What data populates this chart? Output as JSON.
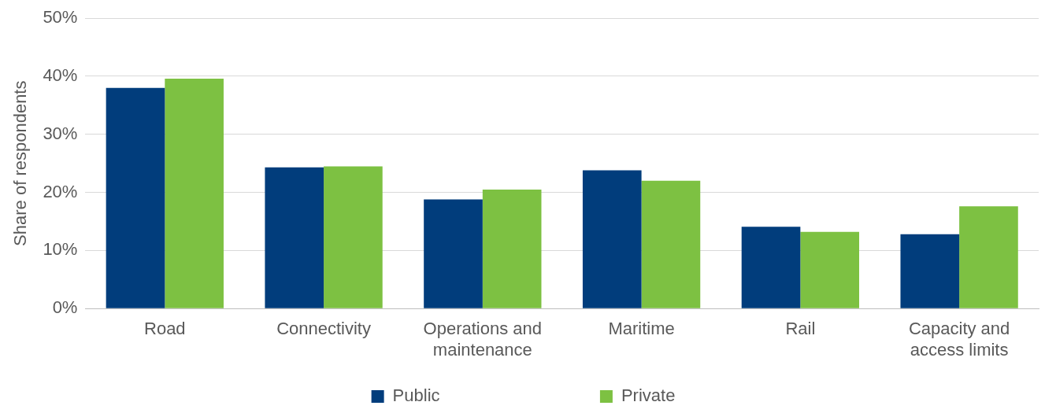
{
  "chart_data": {
    "type": "bar",
    "categories": [
      "Road",
      "Connectivity",
      "Operations and maintenance",
      "Maritime",
      "Rail",
      "Capacity and access limits"
    ],
    "series": [
      {
        "name": "Public",
        "color": "#013d7c",
        "values": [
          38,
          24.3,
          18.8,
          23.8,
          14.1,
          12.8
        ]
      },
      {
        "name": "Private",
        "color": "#7dc142",
        "values": [
          39.6,
          24.5,
          20.5,
          22.0,
          13.2,
          17.6
        ]
      }
    ],
    "ylabel": "Share of respondents",
    "ylim": [
      0,
      50
    ],
    "yticks": [
      {
        "value": 0,
        "label": "0%"
      },
      {
        "value": 10,
        "label": "10%"
      },
      {
        "value": 20,
        "label": "20%"
      },
      {
        "value": 30,
        "label": "30%"
      },
      {
        "value": 40,
        "label": "40%"
      },
      {
        "value": 50,
        "label": "50%"
      }
    ],
    "grid": "y",
    "legend": "bottom"
  }
}
